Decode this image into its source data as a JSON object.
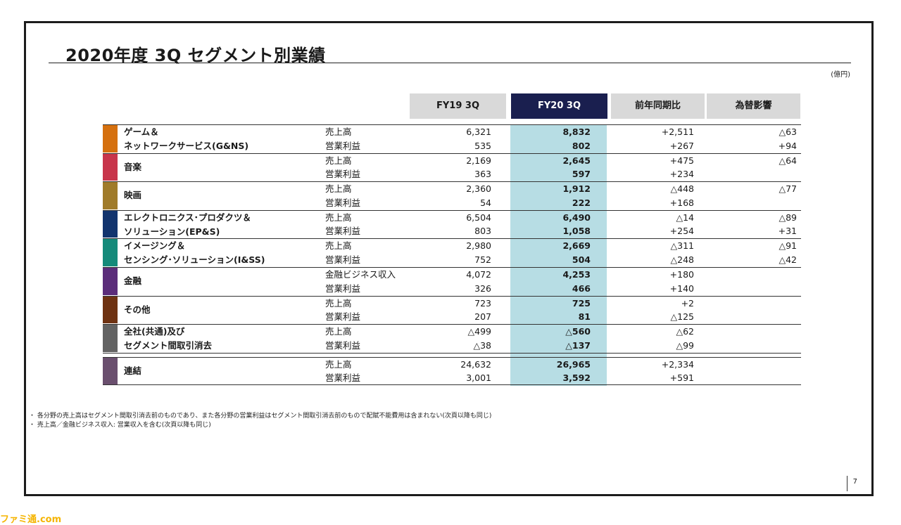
{
  "title": "2020年度 3Q セグメント別業績",
  "unit": "(億円)",
  "columns": {
    "fy19": "FY19 3Q",
    "fy20": "FY20 3Q",
    "yoy": "前年同期比",
    "fx": "為替影響"
  },
  "segments": [
    {
      "name": [
        "ゲーム＆",
        "ネットワークサービス(G&NS)"
      ],
      "color": "#d5700f",
      "rows": [
        {
          "metric": "売上高",
          "fy19": "6,321",
          "fy20": "8,832",
          "yoy": "+2,511",
          "fx": "△63"
        },
        {
          "metric": "営業利益",
          "fy19": "535",
          "fy20": "802",
          "yoy": "+267",
          "fx": "+94"
        }
      ]
    },
    {
      "name": [
        "音楽"
      ],
      "color": "#c8354b",
      "rows": [
        {
          "metric": "売上高",
          "fy19": "2,169",
          "fy20": "2,645",
          "yoy": "+475",
          "fx": "△64"
        },
        {
          "metric": "営業利益",
          "fy19": "363",
          "fy20": "597",
          "yoy": "+234",
          "fx": ""
        }
      ]
    },
    {
      "name": [
        "映画"
      ],
      "color": "#a07b2a",
      "rows": [
        {
          "metric": "売上高",
          "fy19": "2,360",
          "fy20": "1,912",
          "yoy": "△448",
          "fx": "△77"
        },
        {
          "metric": "営業利益",
          "fy19": "54",
          "fy20": "222",
          "yoy": "+168",
          "fx": ""
        }
      ]
    },
    {
      "name": [
        "エレクトロニクス･プロダクツ＆",
        "ソリューション(EP&S)"
      ],
      "color": "#12346e",
      "rows": [
        {
          "metric": "売上高",
          "fy19": "6,504",
          "fy20": "6,490",
          "yoy": "△14",
          "fx": "△89"
        },
        {
          "metric": "営業利益",
          "fy19": "803",
          "fy20": "1,058",
          "yoy": "+254",
          "fx": "+31"
        }
      ]
    },
    {
      "name": [
        "イメージング＆",
        "センシング･ソリューション(I&SS)"
      ],
      "color": "#158a7a",
      "rows": [
        {
          "metric": "売上高",
          "fy19": "2,980",
          "fy20": "2,669",
          "yoy": "△311",
          "fx": "△91"
        },
        {
          "metric": "営業利益",
          "fy19": "752",
          "fy20": "504",
          "yoy": "△248",
          "fx": "△42"
        }
      ]
    },
    {
      "name": [
        "金融"
      ],
      "color": "#5b2d7a",
      "rows": [
        {
          "metric": "金融ビジネス収入",
          "fy19": "4,072",
          "fy20": "4,253",
          "yoy": "+180",
          "fx": ""
        },
        {
          "metric": "営業利益",
          "fy19": "326",
          "fy20": "466",
          "yoy": "+140",
          "fx": ""
        }
      ]
    },
    {
      "name": [
        "その他"
      ],
      "color": "#6e3212",
      "rows": [
        {
          "metric": "売上高",
          "fy19": "723",
          "fy20": "725",
          "yoy": "+2",
          "fx": ""
        },
        {
          "metric": "営業利益",
          "fy19": "207",
          "fy20": "81",
          "yoy": "△125",
          "fx": ""
        }
      ]
    },
    {
      "name": [
        "全社(共通)及び",
        "セグメント間取引消去"
      ],
      "color": "#636363",
      "rows": [
        {
          "metric": "売上高",
          "fy19": "△499",
          "fy20": "△560",
          "yoy": "△62",
          "fx": ""
        },
        {
          "metric": "営業利益",
          "fy19": "△38",
          "fy20": "△137",
          "yoy": "△99",
          "fx": ""
        }
      ]
    }
  ],
  "consolidated": {
    "name": "連結",
    "color": "#6a4f6e",
    "rows": [
      {
        "metric": "売上高",
        "fy19": "24,632",
        "fy20": "26,965",
        "yoy": "+2,334",
        "fx": ""
      },
      {
        "metric": "営業利益",
        "fy19": "3,001",
        "fy20": "3,592",
        "yoy": "+591",
        "fx": ""
      }
    ]
  },
  "notes": [
    "・ 各分野の売上高はセグメント間取引消去前のものであり、また各分野の営業利益はセグメント間取引消去前のもので配賦不能費用は含まれない(次頁以降も同じ)",
    "・ 売上高／金融ビジネス収入: 営業収入を含む(次頁以降も同じ)"
  ],
  "page_number": "7",
  "watermark": "ファミ通.com"
}
